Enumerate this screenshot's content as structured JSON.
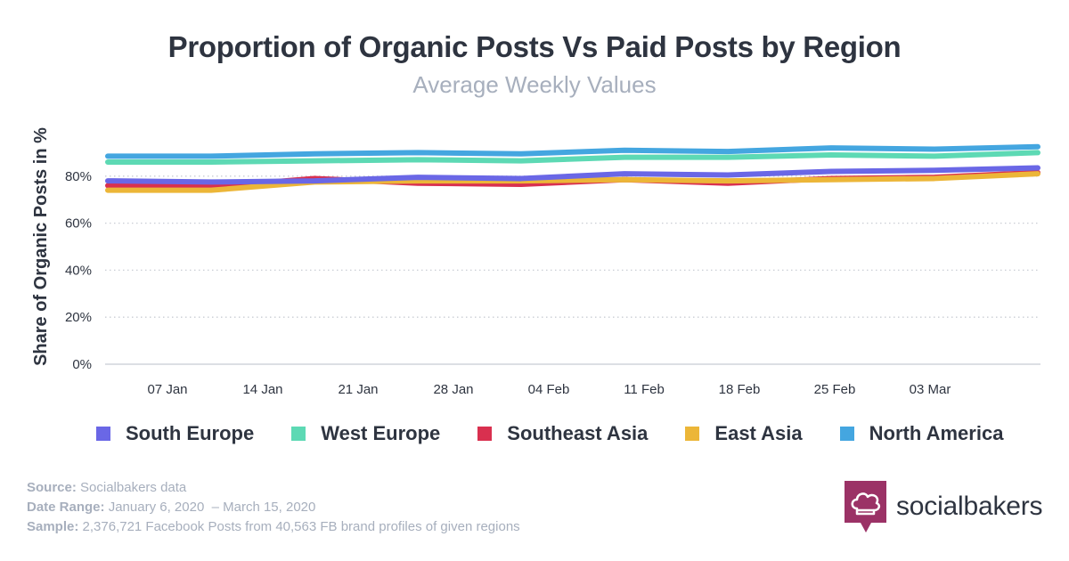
{
  "chart_data": {
    "type": "line",
    "title": "Proportion of Organic Posts Vs Paid Posts by Region",
    "subtitle": "Average Weekly Values",
    "ylabel": "Share of Organic Posts in %",
    "xlabel": "",
    "ylim": [
      0,
      100
    ],
    "yticks": [
      0,
      20,
      40,
      60,
      80
    ],
    "ytick_labels": [
      "0%",
      "20%",
      "40%",
      "60%",
      "80%"
    ],
    "grid": true,
    "legend_position": "bottom",
    "x": [
      "06 Jan",
      "13 Jan",
      "20 Jan",
      "27 Jan",
      "03 Feb",
      "10 Feb",
      "17 Feb",
      "24 Feb",
      "02 Mar",
      "09 Mar"
    ],
    "x_tick_labels": [
      "07 Jan",
      "14 Jan",
      "21 Jan",
      "28 Jan",
      "04 Feb",
      "11 Feb",
      "18 Feb",
      "25 Feb",
      "03 Mar"
    ],
    "series": [
      {
        "name": "South Europe",
        "color": "#6a67e6",
        "values": [
          78,
          77.5,
          78,
          79.5,
          79,
          81,
          80.5,
          82,
          82.5,
          83.5
        ]
      },
      {
        "name": "West Europe",
        "color": "#5dd9b4",
        "values": [
          86,
          86,
          86.5,
          87,
          86.5,
          88,
          88,
          89,
          88.5,
          90
        ]
      },
      {
        "name": "Southeast Asia",
        "color": "#d9304f",
        "values": [
          76,
          75.5,
          79,
          77,
          76.5,
          78.5,
          77,
          79,
          79.5,
          81.5
        ]
      },
      {
        "name": "East Asia",
        "color": "#ecb638",
        "values": [
          74,
          74,
          77.5,
          78,
          78,
          78.5,
          78,
          78.5,
          79,
          81
        ]
      },
      {
        "name": "North America",
        "color": "#44a6e0",
        "values": [
          88.5,
          88.5,
          89.5,
          90,
          89.5,
          91,
          90.5,
          92,
          91.5,
          92.5
        ]
      }
    ]
  },
  "footer": {
    "source_label": "Source:",
    "source_value": "Socialbakers data",
    "range_label": "Date Range:",
    "range_value": "January 6, 2020  – March 15, 2020",
    "sample_label": "Sample:",
    "sample_value": "2,376,721 Facebook Posts from 40,563 FB brand profiles of given regions"
  },
  "brand": {
    "name": "socialbakers",
    "color": "#9b3266"
  }
}
